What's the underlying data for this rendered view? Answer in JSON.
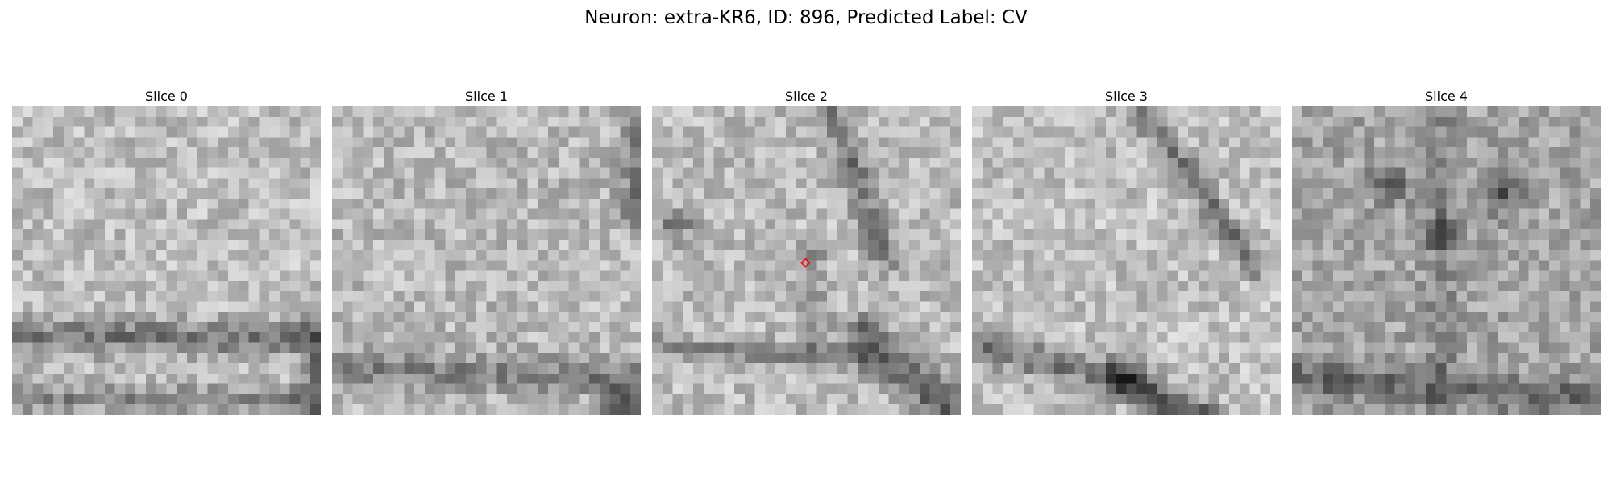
{
  "figure": {
    "title": "Neuron: extra-KR6, ID: 896, Predicted Label: CV"
  },
  "slices": [
    {
      "title": "Slice 0"
    },
    {
      "title": "Slice 1"
    },
    {
      "title": "Slice 2",
      "has_marker": true
    },
    {
      "title": "Slice 3"
    },
    {
      "title": "Slice 4"
    }
  ],
  "marker_color": "#e41a1c",
  "colormap": "grayscale"
}
